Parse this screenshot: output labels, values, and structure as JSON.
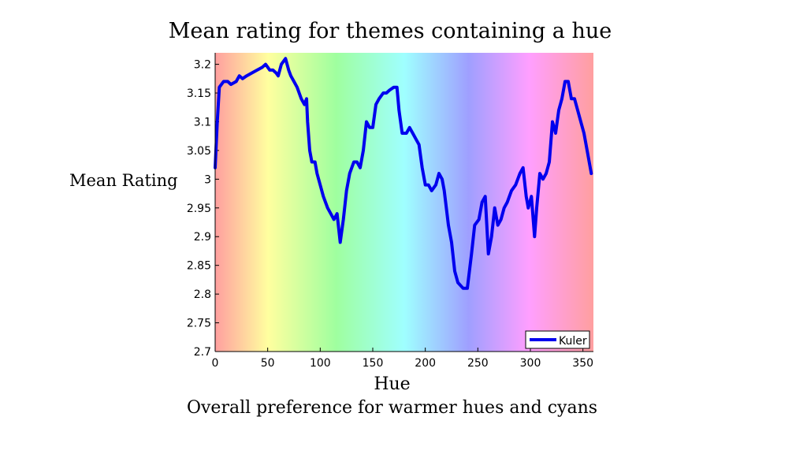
{
  "slide": {
    "title": "Mean rating for themes containing a hue",
    "ylabel": "Mean Rating",
    "xlabel": "Hue",
    "caption": "Overall preference for warmer hues and cyans"
  },
  "chart_data": {
    "type": "line",
    "title": "Mean rating for themes containing a hue",
    "xlabel": "Hue",
    "ylabel": "Mean Rating",
    "xlim": [
      0,
      360
    ],
    "ylim": [
      2.7,
      3.22
    ],
    "xticks": [
      0,
      50,
      100,
      150,
      200,
      250,
      300,
      350
    ],
    "yticks": [
      2.7,
      2.75,
      2.8,
      2.85,
      2.9,
      2.95,
      3,
      3.05,
      3.1,
      3.15,
      3.2
    ],
    "ytick_labels": [
      "2.7",
      "2.75",
      "2.8",
      "2.85",
      "2.9",
      "2.95",
      "3",
      "3.05",
      "3.1",
      "3.15",
      "3.2"
    ],
    "background": "hue spectrum (red to violet to red)",
    "grid": false,
    "legend": {
      "position": "bottom-right",
      "entries": [
        "Kuler"
      ]
    },
    "series": [
      {
        "name": "Kuler",
        "color": "#0000ee",
        "points": [
          [
            0,
            3.02
          ],
          [
            2,
            3.1
          ],
          [
            4,
            3.16
          ],
          [
            8,
            3.17
          ],
          [
            12,
            3.17
          ],
          [
            15,
            3.165
          ],
          [
            20,
            3.17
          ],
          [
            23,
            3.18
          ],
          [
            26,
            3.175
          ],
          [
            30,
            3.18
          ],
          [
            35,
            3.185
          ],
          [
            40,
            3.19
          ],
          [
            45,
            3.195
          ],
          [
            48,
            3.2
          ],
          [
            52,
            3.19
          ],
          [
            55,
            3.19
          ],
          [
            58,
            3.185
          ],
          [
            60,
            3.18
          ],
          [
            63,
            3.2
          ],
          [
            67,
            3.21
          ],
          [
            70,
            3.19
          ],
          [
            72,
            3.18
          ],
          [
            75,
            3.17
          ],
          [
            78,
            3.16
          ],
          [
            82,
            3.14
          ],
          [
            85,
            3.13
          ],
          [
            87,
            3.14
          ],
          [
            88,
            3.1
          ],
          [
            90,
            3.05
          ],
          [
            92,
            3.03
          ],
          [
            95,
            3.03
          ],
          [
            97,
            3.01
          ],
          [
            100,
            2.99
          ],
          [
            103,
            2.97
          ],
          [
            107,
            2.95
          ],
          [
            110,
            2.94
          ],
          [
            113,
            2.93
          ],
          [
            116,
            2.94
          ],
          [
            119,
            2.89
          ],
          [
            122,
            2.93
          ],
          [
            125,
            2.98
          ],
          [
            128,
            3.01
          ],
          [
            132,
            3.03
          ],
          [
            135,
            3.03
          ],
          [
            138,
            3.02
          ],
          [
            141,
            3.05
          ],
          [
            144,
            3.1
          ],
          [
            147,
            3.09
          ],
          [
            150,
            3.09
          ],
          [
            153,
            3.13
          ],
          [
            156,
            3.14
          ],
          [
            160,
            3.15
          ],
          [
            163,
            3.15
          ],
          [
            166,
            3.155
          ],
          [
            170,
            3.16
          ],
          [
            173,
            3.16
          ],
          [
            175,
            3.12
          ],
          [
            178,
            3.08
          ],
          [
            182,
            3.08
          ],
          [
            185,
            3.09
          ],
          [
            188,
            3.08
          ],
          [
            191,
            3.07
          ],
          [
            194,
            3.06
          ],
          [
            197,
            3.02
          ],
          [
            200,
            2.99
          ],
          [
            203,
            2.99
          ],
          [
            206,
            2.98
          ],
          [
            210,
            2.99
          ],
          [
            213,
            3.01
          ],
          [
            216,
            3.0
          ],
          [
            218,
            2.98
          ],
          [
            222,
            2.92
          ],
          [
            225,
            2.89
          ],
          [
            228,
            2.84
          ],
          [
            231,
            2.82
          ],
          [
            236,
            2.81
          ],
          [
            240,
            2.81
          ],
          [
            244,
            2.87
          ],
          [
            247,
            2.92
          ],
          [
            251,
            2.93
          ],
          [
            254,
            2.96
          ],
          [
            257,
            2.97
          ],
          [
            260,
            2.87
          ],
          [
            263,
            2.9
          ],
          [
            266,
            2.95
          ],
          [
            269,
            2.92
          ],
          [
            272,
            2.93
          ],
          [
            275,
            2.95
          ],
          [
            278,
            2.96
          ],
          [
            282,
            2.98
          ],
          [
            286,
            2.99
          ],
          [
            290,
            3.01
          ],
          [
            293,
            3.02
          ],
          [
            296,
            2.97
          ],
          [
            298,
            2.95
          ],
          [
            301,
            2.97
          ],
          [
            304,
            2.9
          ],
          [
            306,
            2.95
          ],
          [
            309,
            3.01
          ],
          [
            312,
            3.0
          ],
          [
            315,
            3.01
          ],
          [
            318,
            3.03
          ],
          [
            321,
            3.1
          ],
          [
            324,
            3.08
          ],
          [
            327,
            3.12
          ],
          [
            330,
            3.14
          ],
          [
            333,
            3.17
          ],
          [
            336,
            3.17
          ],
          [
            339,
            3.14
          ],
          [
            342,
            3.14
          ],
          [
            345,
            3.12
          ],
          [
            348,
            3.1
          ],
          [
            351,
            3.08
          ],
          [
            354,
            3.05
          ],
          [
            358,
            3.01
          ]
        ]
      }
    ]
  }
}
